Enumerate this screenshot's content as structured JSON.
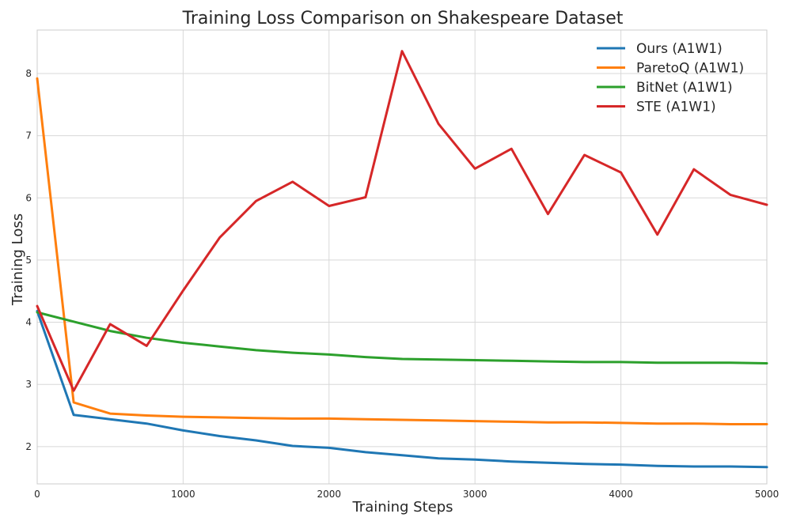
{
  "chart_data": {
    "type": "line",
    "title": "Training Loss Comparison on Shakespeare Dataset",
    "xlabel": "Training Steps",
    "ylabel": "Training Loss",
    "xlim": [
      0,
      5000
    ],
    "ylim": [
      1.4,
      8.7
    ],
    "x_ticks": [
      0,
      1000,
      2000,
      3000,
      4000,
      5000
    ],
    "y_ticks": [
      2,
      3,
      4,
      5,
      6,
      7,
      8
    ],
    "grid": true,
    "legend_position": "top-right",
    "x": [
      0,
      250,
      500,
      750,
      1000,
      1250,
      1500,
      1750,
      2000,
      2250,
      2500,
      2750,
      3000,
      3250,
      3500,
      3750,
      4000,
      4250,
      4500,
      4750,
      5000
    ],
    "series": [
      {
        "name": "Ours (A1W1)",
        "color": "#1f77b4",
        "values": [
          4.18,
          2.51,
          2.44,
          2.37,
          2.26,
          2.17,
          2.1,
          2.01,
          1.98,
          1.91,
          1.86,
          1.81,
          1.79,
          1.76,
          1.74,
          1.72,
          1.71,
          1.69,
          1.68,
          1.68,
          1.67
        ]
      },
      {
        "name": "ParetoQ (A1W1)",
        "color": "#ff7f0e",
        "values": [
          7.92,
          2.71,
          2.53,
          2.5,
          2.48,
          2.47,
          2.46,
          2.45,
          2.45,
          2.44,
          2.43,
          2.42,
          2.41,
          2.4,
          2.39,
          2.39,
          2.38,
          2.37,
          2.37,
          2.36,
          2.36
        ]
      },
      {
        "name": "BitNet (A1W1)",
        "color": "#2ca02c",
        "values": [
          4.16,
          4.01,
          3.86,
          3.75,
          3.67,
          3.61,
          3.55,
          3.51,
          3.48,
          3.44,
          3.41,
          3.4,
          3.39,
          3.38,
          3.37,
          3.36,
          3.36,
          3.35,
          3.35,
          3.35,
          3.34
        ]
      },
      {
        "name": "STE (A1W1)",
        "color": "#d62728",
        "values": [
          4.26,
          2.9,
          3.97,
          3.62,
          4.51,
          5.36,
          5.95,
          6.26,
          5.87,
          6.01,
          8.36,
          7.19,
          6.47,
          6.79,
          5.74,
          6.69,
          6.41,
          5.41,
          6.46,
          6.05,
          5.89
        ]
      }
    ]
  }
}
